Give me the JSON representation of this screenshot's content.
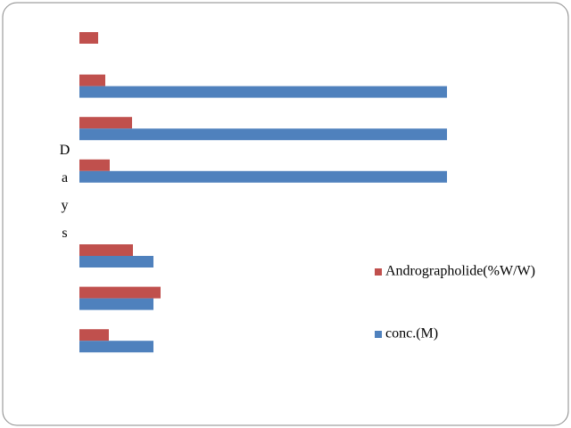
{
  "chart_data": {
    "type": "bar",
    "orientation": "horizontal",
    "y_label": "Days",
    "categories": [
      null,
      null,
      null,
      null,
      null,
      null,
      null,
      null
    ],
    "series": [
      {
        "name": "Andrographolide(%W/W)",
        "color": "#c0504d",
        "values": [
          21,
          29,
          59,
          34,
          null,
          60,
          91,
          33
        ]
      },
      {
        "name": "conc.(M)",
        "color": "#4f81bd",
        "values": [
          null,
          412,
          412,
          412,
          null,
          83,
          83,
          83
        ]
      }
    ],
    "xlim": [
      0,
      420
    ],
    "grid": false,
    "legend": "right"
  }
}
